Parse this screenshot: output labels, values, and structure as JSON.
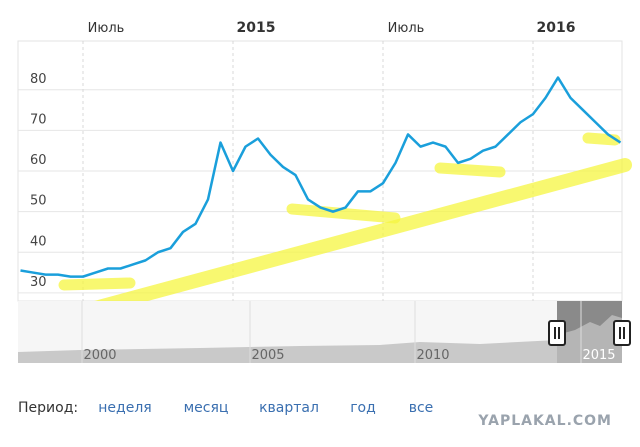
{
  "chart_data": {
    "type": "line",
    "categories": [
      null,
      null,
      null,
      null,
      null,
      "Июль",
      null,
      null,
      null,
      null,
      null,
      null,
      null,
      null,
      null,
      null,
      null,
      "2015",
      null,
      null,
      null,
      null,
      null,
      null,
      null,
      null,
      null,
      null,
      null,
      "Июль",
      null,
      null,
      null,
      null,
      null,
      null,
      null,
      null,
      null,
      null,
      null,
      "2016",
      null,
      null,
      null,
      null,
      null,
      null,
      null
    ],
    "series": [
      {
        "color": "#1a9fdb",
        "values": [
          35.5,
          35,
          34.5,
          34.5,
          34,
          34,
          35,
          36,
          36,
          37,
          38,
          40,
          41,
          45,
          47,
          53,
          67,
          60,
          66,
          68,
          64,
          61,
          59,
          53,
          51,
          50,
          51,
          55,
          55,
          57,
          62,
          69,
          66,
          67,
          66,
          62,
          63,
          65,
          66,
          69,
          72,
          74,
          78,
          83,
          78,
          75,
          72,
          69,
          67
        ]
      }
    ],
    "ylim": [
      28,
      92
    ],
    "yticks": [
      30,
      40,
      50,
      60,
      70,
      80
    ],
    "grid": true
  },
  "navigator": {
    "labels": [
      "2000",
      "2005",
      "2010",
      "2015"
    ]
  },
  "period": {
    "label": "Период:",
    "options": [
      "неделя",
      "месяц",
      "квартал",
      "год",
      "все"
    ]
  },
  "watermark": "YAPLAKAL.COM"
}
